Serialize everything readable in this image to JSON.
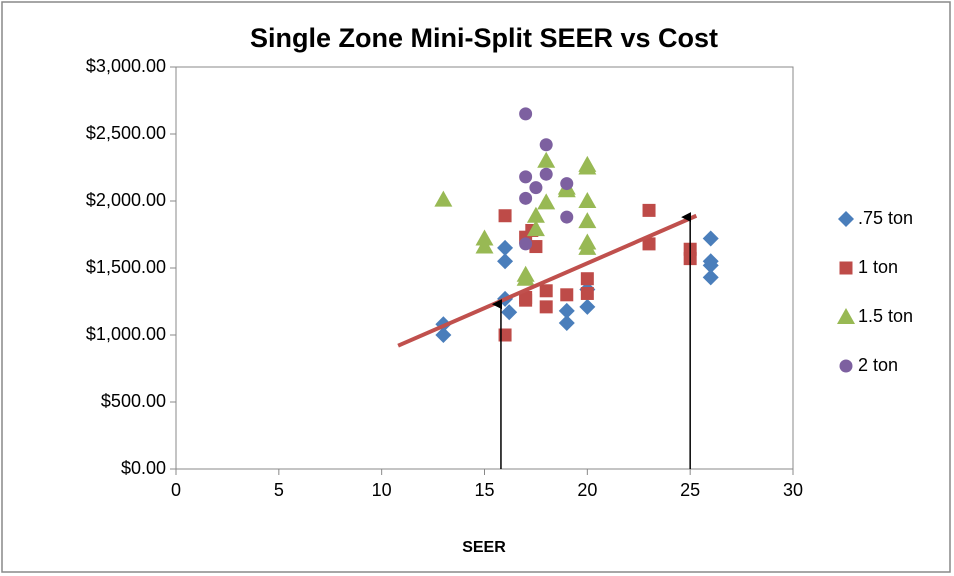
{
  "chart_data": {
    "type": "scatter",
    "title": "Single Zone Mini-Split SEER vs Cost",
    "x_label": "SEER",
    "xlim": [
      0,
      30
    ],
    "xticks": [
      0,
      5,
      10,
      15,
      20,
      25,
      30
    ],
    "ylim": [
      0,
      3000
    ],
    "yticks": [
      {
        "value": 0,
        "label": "$0.00"
      },
      {
        "value": 500,
        "label": "$500.00"
      },
      {
        "value": 1000,
        "label": "$1,000.00"
      },
      {
        "value": 1500,
        "label": "$1,500.00"
      },
      {
        "value": 2000,
        "label": "$2,000.00"
      },
      {
        "value": 2500,
        "label": "$2,500.00"
      },
      {
        "value": 3000,
        "label": "$3,000.00"
      }
    ],
    "grid": false,
    "legend": "right",
    "series": [
      {
        "name": ".75 ton",
        "color": "#4a7ebb",
        "marker": "diamond",
        "x": [
          13,
          13,
          16,
          16,
          16,
          16.2,
          19,
          19,
          20,
          20,
          26,
          26,
          26,
          26
        ],
        "values": [
          1080,
          1000,
          1650,
          1550,
          1270,
          1170,
          1180,
          1090,
          1210,
          1340,
          1720,
          1550,
          1520,
          1430
        ]
      },
      {
        "name": "1 ton",
        "color": "#be4b48",
        "marker": "square",
        "x": [
          16,
          16,
          17,
          17,
          17,
          17.5,
          17.3,
          18,
          18,
          19,
          20,
          20,
          23,
          23,
          25,
          25
        ],
        "values": [
          1890,
          1000,
          1730,
          1280,
          1260,
          1660,
          1780,
          1330,
          1210,
          1300,
          1420,
          1310,
          1930,
          1680,
          1640,
          1570
        ]
      },
      {
        "name": "1.5 ton",
        "color": "#98b954",
        "marker": "triangle",
        "x": [
          13,
          15,
          15,
          17,
          17,
          17.5,
          17.5,
          18,
          18,
          19,
          19,
          20,
          20,
          20,
          20,
          20,
          20
        ],
        "values": [
          2010,
          1720,
          1660,
          1450,
          1420,
          1890,
          1790,
          2300,
          1990,
          2100,
          2080,
          2270,
          2250,
          2000,
          1850,
          1690,
          1650
        ]
      },
      {
        "name": "2 ton",
        "color": "#7d60a0",
        "marker": "circle",
        "x": [
          17,
          17,
          17,
          17,
          17.5,
          18,
          18,
          19,
          19
        ],
        "values": [
          2650,
          2180,
          2020,
          1680,
          2100,
          2420,
          2200,
          2130,
          1880
        ]
      }
    ],
    "trendline": {
      "color": "#c0504d",
      "x": [
        10.8,
        25.3
      ],
      "values": [
        920,
        1890
      ]
    },
    "arrows": [
      {
        "x": 15.8,
        "values": [
          0,
          1230
        ]
      },
      {
        "x": 25,
        "values": [
          0,
          1880
        ]
      }
    ]
  }
}
